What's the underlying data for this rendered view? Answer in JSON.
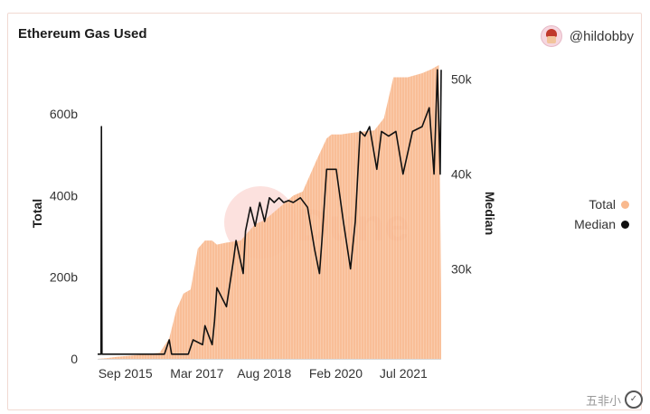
{
  "header": {
    "title": "Ethereum Gas Used",
    "author": "@hildobby"
  },
  "watermark": {
    "text": "Dune",
    "corner_text": "五非小",
    "corner_icon": "✓"
  },
  "colors": {
    "total": "#f9b98e",
    "median": "#111111",
    "watermark_circle": "#f6a9a0",
    "watermark_text": "#e9a7a4"
  },
  "chart_data": {
    "type": "area",
    "title": "Ethereum Gas Used",
    "x_tick_labels": [
      "Sep 2015",
      "Mar 2017",
      "Aug 2018",
      "Feb 2020",
      "Jul 2021"
    ],
    "x_tick_positions": [
      2015.67,
      2017.17,
      2018.58,
      2020.08,
      2021.5
    ],
    "x_range": [
      2015.6,
      2022.8
    ],
    "y_left": {
      "label": "Total",
      "range": [
        0,
        720
      ],
      "ticks": [
        0,
        200,
        400,
        600
      ],
      "tick_labels": [
        "0",
        "200b",
        "400b",
        "600b"
      ]
    },
    "y_right": {
      "label": "Median",
      "range": [
        20500,
        51500
      ],
      "ticks": [
        30000,
        40000,
        50000
      ],
      "tick_labels": [
        "30k",
        "40k",
        "50k"
      ]
    },
    "series": [
      {
        "name": "Total",
        "axis": "left",
        "style": "area",
        "x": [
          2015.6,
          2015.8,
          2016.0,
          2016.5,
          2016.9,
          2017.1,
          2017.25,
          2017.4,
          2017.55,
          2017.7,
          2017.85,
          2018.0,
          2018.1,
          2018.3,
          2018.6,
          2018.9,
          2019.1,
          2019.5,
          2019.7,
          2019.9,
          2020.2,
          2020.4,
          2020.5,
          2020.7,
          2021.0,
          2021.4,
          2021.6,
          2021.8,
          2022.1,
          2022.4,
          2022.6,
          2022.75,
          2022.8
        ],
        "values": [
          0,
          2,
          5,
          10,
          15,
          50,
          120,
          160,
          170,
          270,
          290,
          290,
          280,
          285,
          290,
          330,
          340,
          380,
          400,
          410,
          490,
          540,
          550,
          550,
          555,
          560,
          590,
          690,
          690,
          700,
          710,
          720,
          150
        ]
      },
      {
        "name": "Median",
        "axis": "right",
        "style": "line",
        "x": [
          2015.6,
          2015.67,
          2015.68,
          2015.69,
          2016.5,
          2017.0,
          2017.1,
          2017.15,
          2017.2,
          2017.5,
          2017.6,
          2017.8,
          2017.85,
          2018.0,
          2018.05,
          2018.1,
          2018.3,
          2018.45,
          2018.5,
          2018.65,
          2018.7,
          2018.8,
          2018.9,
          2019.0,
          2019.1,
          2019.2,
          2019.3,
          2019.4,
          2019.5,
          2019.6,
          2019.7,
          2019.85,
          2020.0,
          2020.15,
          2020.25,
          2020.3,
          2020.4,
          2020.6,
          2020.75,
          2020.9,
          2021.0,
          2021.1,
          2021.2,
          2021.3,
          2021.45,
          2021.55,
          2021.7,
          2021.85,
          2022.0,
          2022.2,
          2022.4,
          2022.55,
          2022.65,
          2022.72,
          2022.78,
          2022.8
        ],
        "values": [
          21000,
          21000,
          45000,
          21000,
          21000,
          21000,
          22500,
          21000,
          21000,
          21000,
          22500,
          22000,
          24000,
          22000,
          24500,
          28000,
          26000,
          31000,
          33000,
          29500,
          34000,
          36500,
          34500,
          37000,
          35000,
          37500,
          37000,
          37500,
          37000,
          37200,
          37000,
          37500,
          36500,
          32000,
          29500,
          33000,
          40500,
          40500,
          35000,
          30000,
          35000,
          44500,
          44000,
          45000,
          40500,
          44500,
          44000,
          44500,
          40000,
          44500,
          45000,
          47000,
          40000,
          51000,
          40000,
          51000
        ]
      }
    ],
    "legend": [
      "Total",
      "Median"
    ],
    "legend_position": "right"
  }
}
